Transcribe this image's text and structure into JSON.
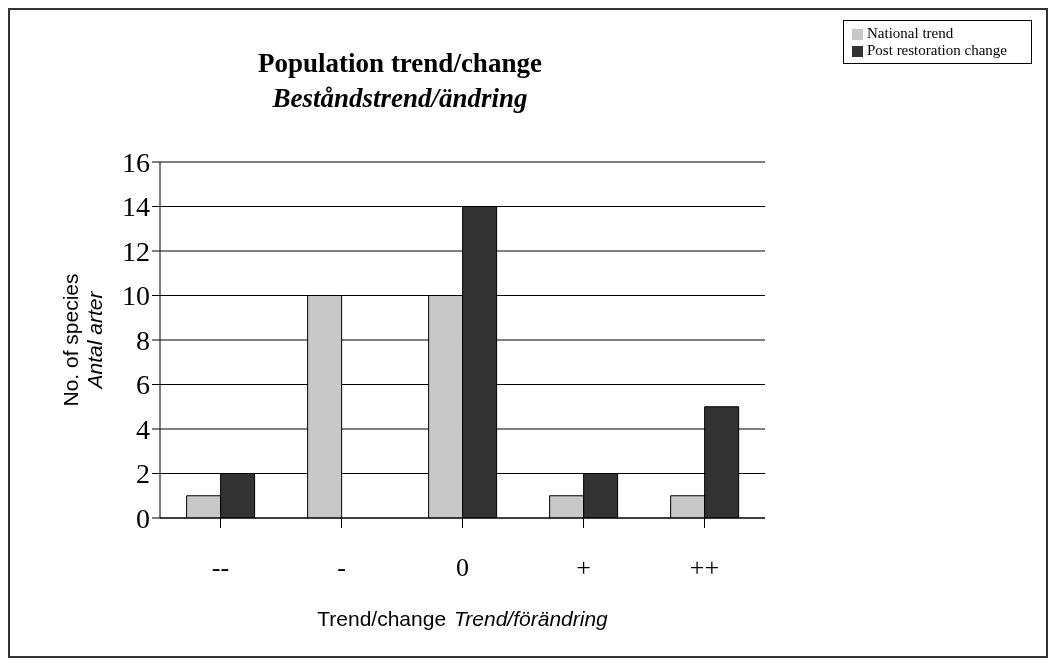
{
  "chart_data": {
    "type": "bar",
    "title": "Population trend/change",
    "subtitle": "Beståndstrend/ändring",
    "xlabel": "Trend/change\nTrend/förändring",
    "ylabel": "No. of species\nAntal arter",
    "categories": [
      "--",
      "-",
      "0",
      "+",
      "++"
    ],
    "series": [
      {
        "name": "National trend",
        "color": "#c8c8c8",
        "values": [
          1,
          10,
          10,
          1,
          1
        ]
      },
      {
        "name": "Post restoration change",
        "color": "#333333",
        "values": [
          2,
          0,
          14,
          2,
          5
        ]
      }
    ],
    "ylim": [
      0,
      16
    ],
    "yticks": [
      0,
      2,
      4,
      6,
      8,
      10,
      12,
      14,
      16
    ],
    "grid": "y",
    "legend": "top right"
  }
}
